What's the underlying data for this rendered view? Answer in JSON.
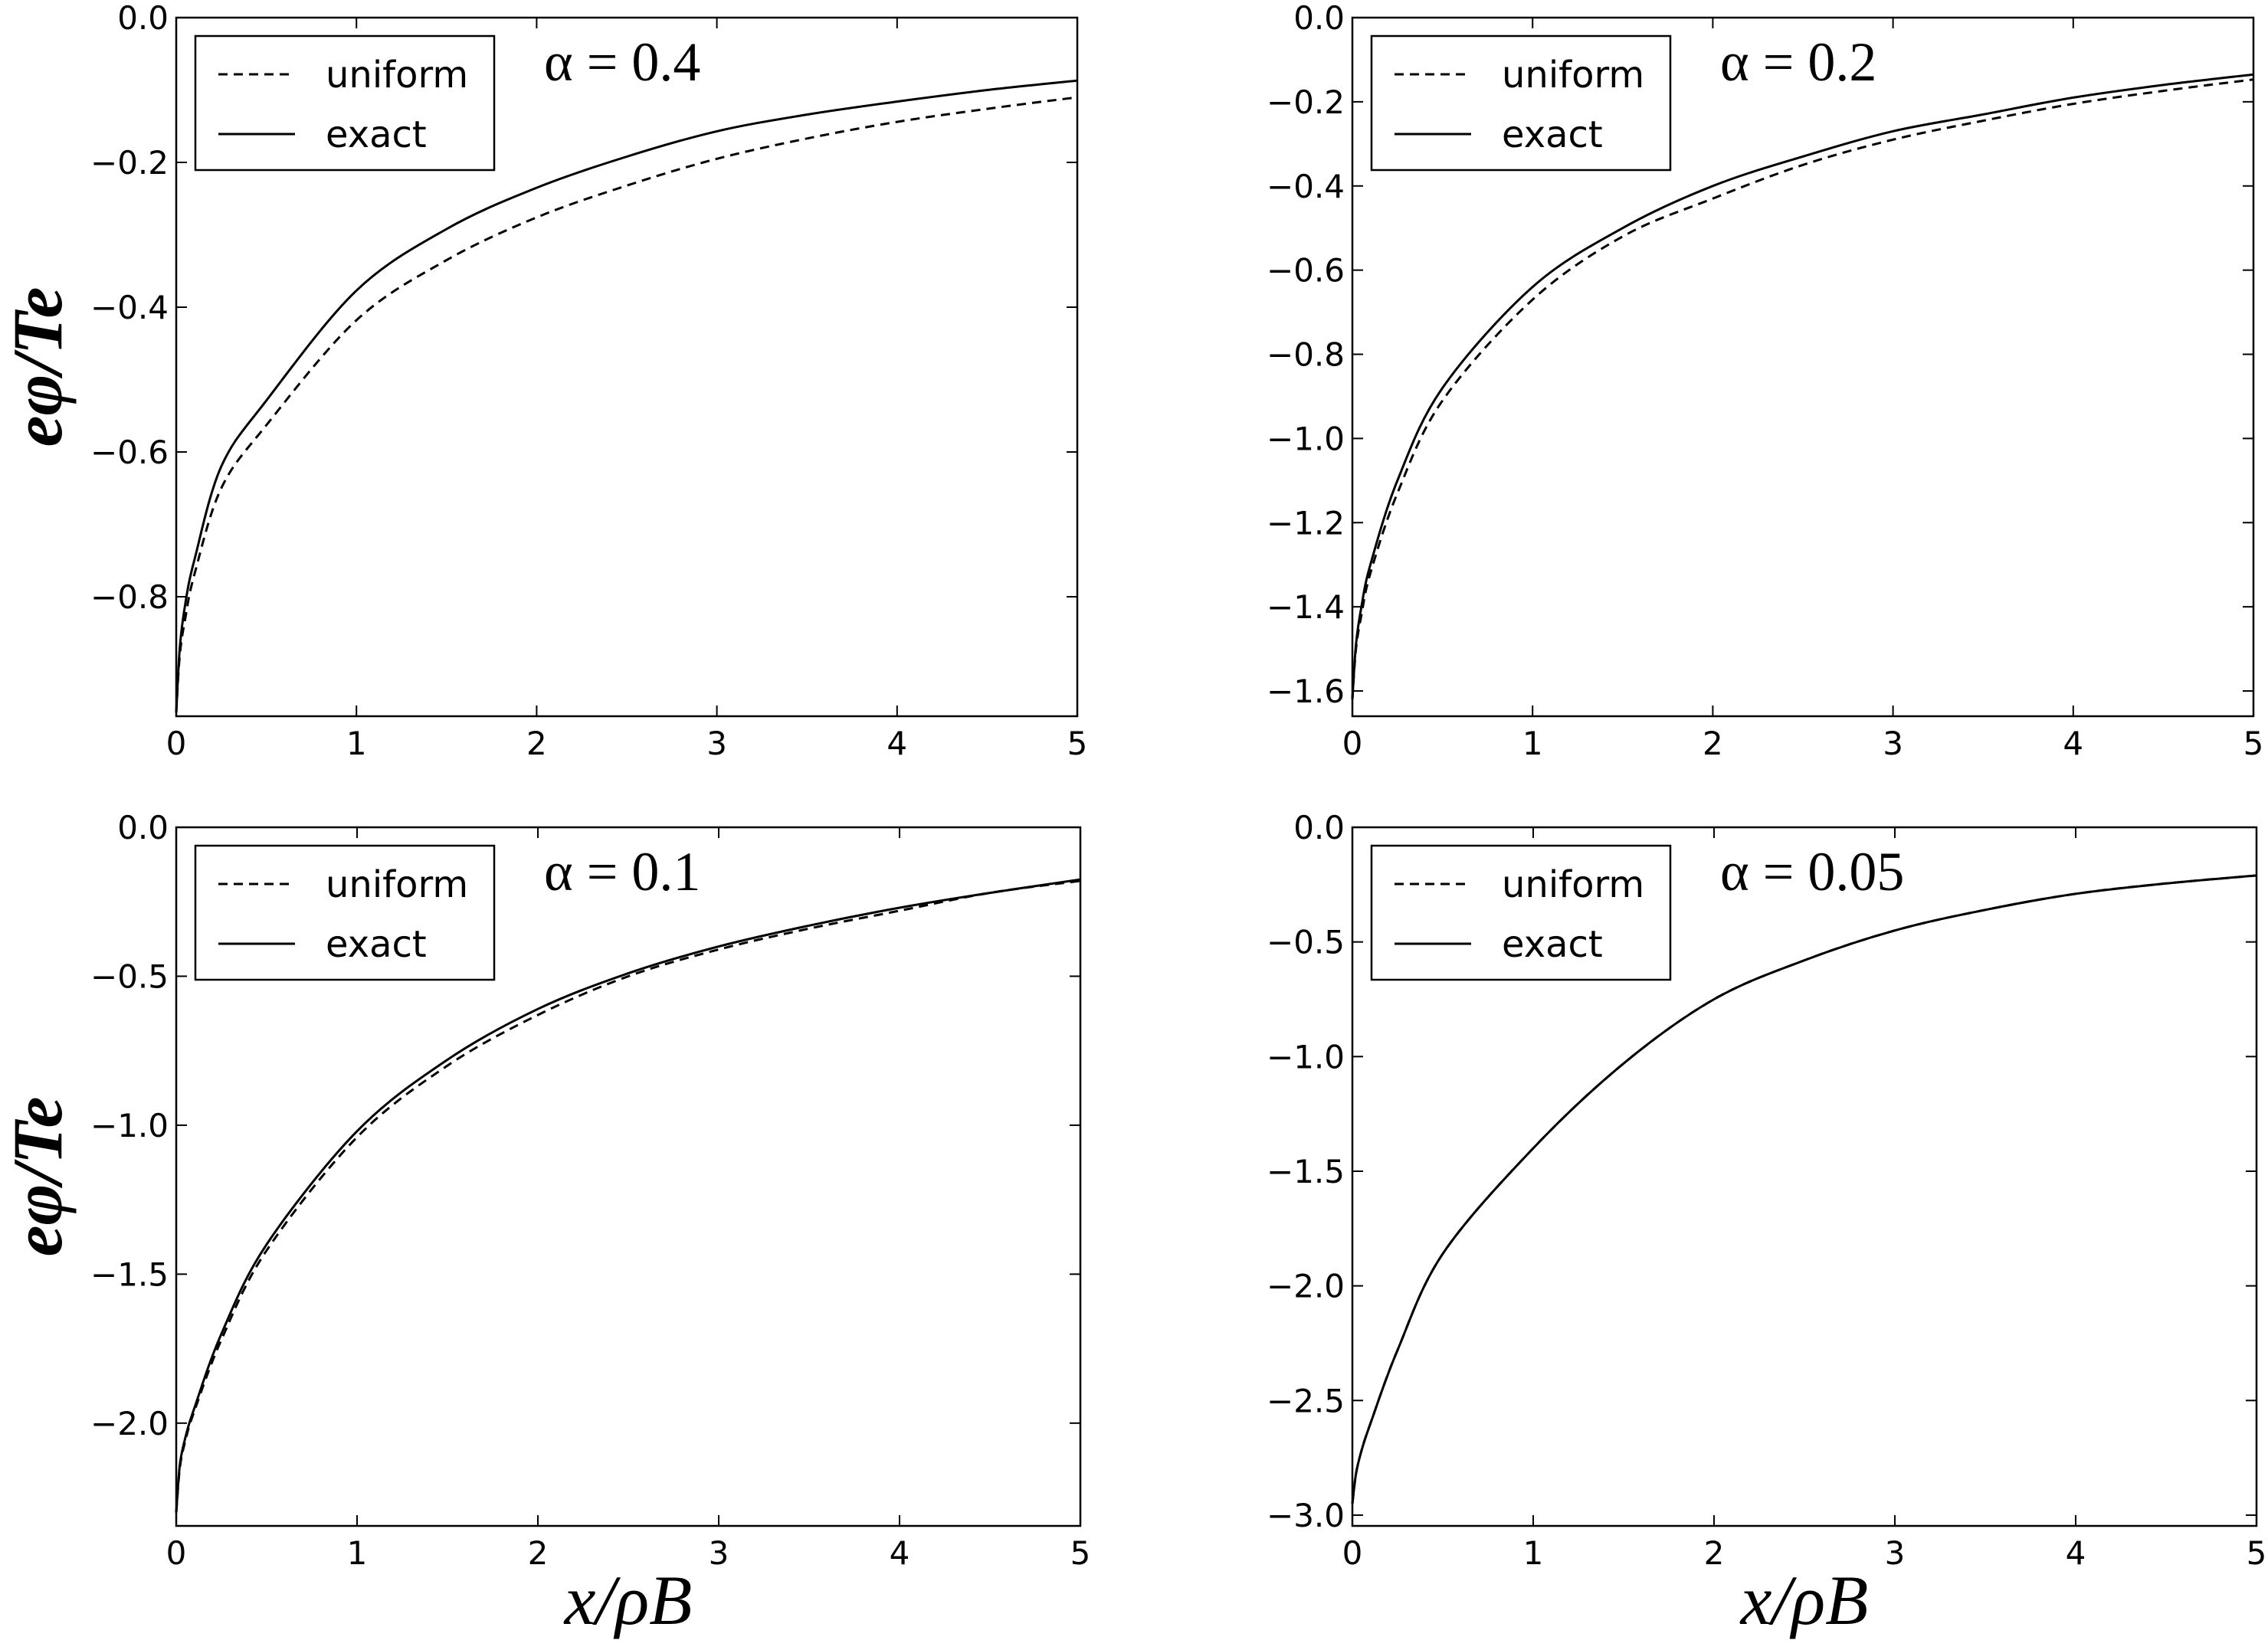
{
  "chart_data": [
    {
      "type": "line",
      "annotation": "α = 0.4",
      "ylabel": "eφ/Te",
      "xlabel": "",
      "xlim": [
        0,
        5
      ],
      "ylim": [
        -0.965,
        0
      ],
      "xticks": [
        "0",
        "1",
        "2",
        "3",
        "4",
        "5"
      ],
      "yticks": [
        "0.0",
        "−0.2",
        "−0.4",
        "−0.6",
        "−0.8"
      ],
      "ytick_values": [
        0,
        -0.2,
        -0.4,
        -0.6,
        -0.8
      ],
      "legend": {
        "placement": "top-left",
        "entries": [
          "uniform",
          "exact"
        ]
      },
      "x": [
        0,
        0.02,
        0.05,
        0.1,
        0.25,
        0.5,
        1,
        1.5,
        2,
        2.5,
        3,
        3.5,
        4,
        4.5,
        5
      ],
      "series": [
        {
          "name": "uniform",
          "style": "dashed",
          "values": [
            -0.96,
            -0.88,
            -0.83,
            -0.77,
            -0.65,
            -0.563,
            -0.418,
            -0.335,
            -0.276,
            -0.232,
            -0.195,
            -0.167,
            -0.144,
            -0.126,
            -0.11
          ]
        },
        {
          "name": "exact",
          "style": "solid",
          "values": [
            -0.96,
            -0.87,
            -0.81,
            -0.75,
            -0.62,
            -0.529,
            -0.377,
            -0.292,
            -0.235,
            -0.192,
            -0.157,
            -0.134,
            -0.116,
            -0.1,
            -0.087
          ]
        }
      ]
    },
    {
      "type": "line",
      "annotation": "α = 0.2",
      "ylabel": "",
      "xlabel": "",
      "xlim": [
        0,
        5
      ],
      "ylim": [
        -1.66,
        0
      ],
      "xticks": [
        "0",
        "1",
        "2",
        "3",
        "4",
        "5"
      ],
      "yticks": [
        "0.0",
        "−0.2",
        "−0.4",
        "−0.6",
        "−0.8",
        "−1.0",
        "−1.2",
        "−1.4",
        "−1.6"
      ],
      "ytick_values": [
        0,
        -0.2,
        -0.4,
        -0.6,
        -0.8,
        -1.0,
        -1.2,
        -1.4,
        -1.6
      ],
      "legend": {
        "placement": "top-left",
        "entries": [
          "uniform",
          "exact"
        ]
      },
      "x": [
        0,
        0.02,
        0.05,
        0.1,
        0.25,
        0.5,
        1,
        1.5,
        2,
        2.5,
        3,
        3.5,
        4,
        4.5,
        5
      ],
      "series": [
        {
          "name": "uniform",
          "style": "dashed",
          "values": [
            -1.62,
            -1.5,
            -1.42,
            -1.32,
            -1.13,
            -0.91,
            -0.67,
            -0.52,
            -0.43,
            -0.35,
            -0.29,
            -0.245,
            -0.205,
            -0.174,
            -0.147
          ]
        },
        {
          "name": "exact",
          "style": "solid",
          "values": [
            -1.62,
            -1.49,
            -1.4,
            -1.3,
            -1.1,
            -0.88,
            -0.64,
            -0.5,
            -0.4,
            -0.33,
            -0.27,
            -0.23,
            -0.19,
            -0.16,
            -0.135
          ]
        }
      ]
    },
    {
      "type": "line",
      "annotation": "α = 0.1",
      "ylabel": "eφ/Te",
      "xlabel": "x/ρB",
      "xlim": [
        0,
        5
      ],
      "ylim": [
        -2.345,
        0
      ],
      "xticks": [
        "0",
        "1",
        "2",
        "3",
        "4",
        "5"
      ],
      "yticks": [
        "0.0",
        "−0.5",
        "−1.0",
        "−1.5",
        "−2.0"
      ],
      "ytick_values": [
        0,
        -0.5,
        -1.0,
        -1.5,
        -2.0
      ],
      "legend": {
        "placement": "top-left",
        "entries": [
          "uniform",
          "exact"
        ]
      },
      "x": [
        0,
        0.02,
        0.05,
        0.1,
        0.25,
        0.5,
        1,
        1.5,
        2,
        2.5,
        3,
        3.5,
        4,
        4.5,
        5
      ],
      "series": [
        {
          "name": "uniform",
          "style": "dashed",
          "values": [
            -2.3,
            -2.15,
            -2.06,
            -1.96,
            -1.72,
            -1.42,
            -1.04,
            -0.8,
            -0.63,
            -0.5,
            -0.41,
            -0.34,
            -0.28,
            -0.22,
            -0.18
          ]
        },
        {
          "name": "exact",
          "style": "solid",
          "values": [
            -2.3,
            -2.14,
            -2.05,
            -1.95,
            -1.7,
            -1.4,
            -1.02,
            -0.78,
            -0.61,
            -0.49,
            -0.4,
            -0.33,
            -0.27,
            -0.22,
            -0.175
          ]
        }
      ]
    },
    {
      "type": "line",
      "annotation": "α = 0.05",
      "ylabel": "",
      "xlabel": "x/ρB",
      "xlim": [
        0,
        5
      ],
      "ylim": [
        -3.047,
        0
      ],
      "xticks": [
        "0",
        "1",
        "2",
        "3",
        "4",
        "5"
      ],
      "yticks": [
        "0.0",
        "−0.5",
        "−1.0",
        "−1.5",
        "−2.0",
        "−2.5",
        "−3.0"
      ],
      "ytick_values": [
        0,
        -0.5,
        -1.0,
        -1.5,
        -2.0,
        -2.5,
        -3.0
      ],
      "legend": {
        "placement": "top-left",
        "entries": [
          "uniform",
          "exact"
        ]
      },
      "x": [
        0,
        0.02,
        0.05,
        0.1,
        0.25,
        0.5,
        1,
        1.5,
        2,
        2.5,
        3,
        3.5,
        4,
        4.5,
        5
      ],
      "series": [
        {
          "name": "uniform",
          "style": "dashed",
          "values": [
            -2.95,
            -2.82,
            -2.72,
            -2.6,
            -2.28,
            -1.86,
            -1.4,
            -1.03,
            -0.75,
            -0.58,
            -0.45,
            -0.36,
            -0.29,
            -0.245,
            -0.21
          ]
        },
        {
          "name": "exact",
          "style": "solid",
          "values": [
            -2.95,
            -2.82,
            -2.72,
            -2.6,
            -2.28,
            -1.86,
            -1.4,
            -1.03,
            -0.75,
            -0.58,
            -0.45,
            -0.36,
            -0.29,
            -0.245,
            -0.21
          ]
        }
      ]
    }
  ]
}
